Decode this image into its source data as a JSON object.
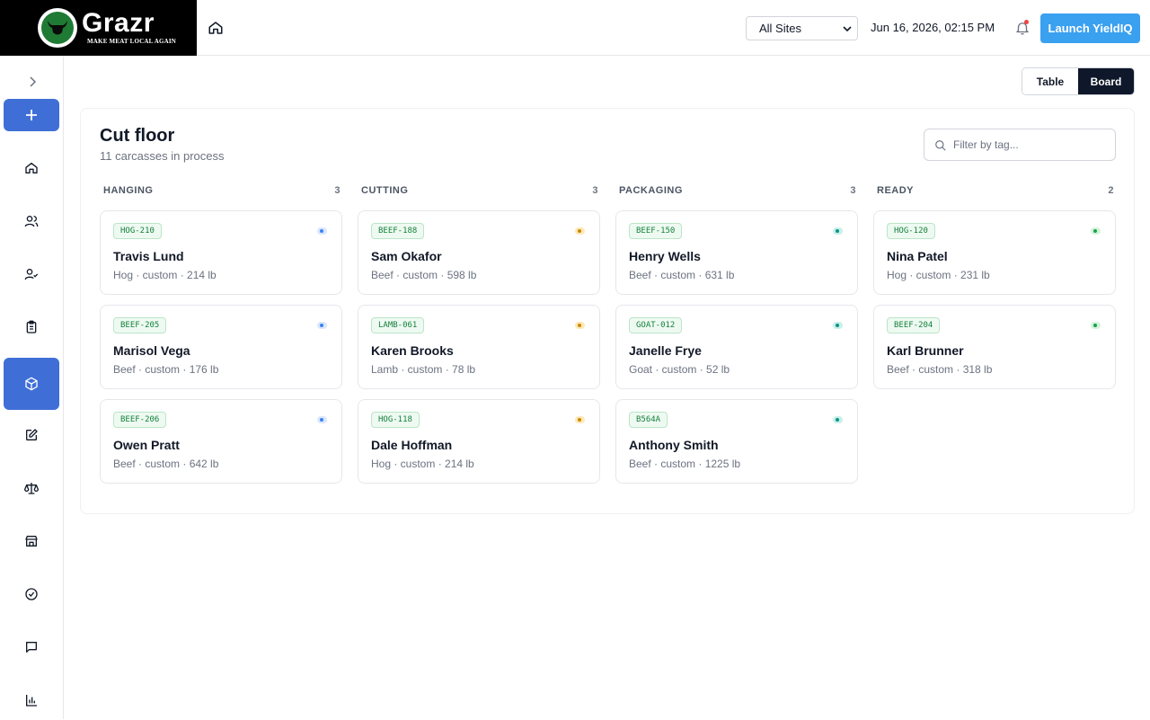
{
  "brand": {
    "name": "Grazr",
    "tagline": "MAKE MEAT LOCAL AGAIN"
  },
  "header": {
    "site_select": "All Sites",
    "datetime": "Jun 16, 2026, 02:15 PM",
    "launch_button": "Launch YieldIQ"
  },
  "view_toggle": {
    "table": "Table",
    "board": "Board",
    "selected": "Board"
  },
  "board": {
    "title": "Cut floor",
    "subtitle": "11 carcasses in process",
    "filter_placeholder": "Filter by tag...",
    "columns": [
      {
        "name": "HANGING",
        "count": "3",
        "status_color": "blue",
        "cards": [
          {
            "tag": "HOG-210",
            "name": "Travis Lund",
            "meta": "Hog · custom · 214 lb"
          },
          {
            "tag": "BEEF-205",
            "name": "Marisol Vega",
            "meta": "Beef · custom · 176 lb"
          },
          {
            "tag": "BEEF-206",
            "name": "Owen Pratt",
            "meta": "Beef · custom · 642 lb"
          }
        ]
      },
      {
        "name": "CUTTING",
        "count": "3",
        "status_color": "amber",
        "cards": [
          {
            "tag": "BEEF-188",
            "name": "Sam Okafor",
            "meta": "Beef · custom · 598 lb"
          },
          {
            "tag": "LAMB-061",
            "name": "Karen Brooks",
            "meta": "Lamb · custom · 78 lb"
          },
          {
            "tag": "HOG-118",
            "name": "Dale Hoffman",
            "meta": "Hog · custom · 214 lb"
          }
        ]
      },
      {
        "name": "PACKAGING",
        "count": "3",
        "status_color": "teal",
        "cards": [
          {
            "tag": "BEEF-150",
            "name": "Henry Wells",
            "meta": "Beef · custom · 631 lb"
          },
          {
            "tag": "GOAT-012",
            "name": "Janelle Frye",
            "meta": "Goat · custom · 52 lb"
          },
          {
            "tag": "B564A",
            "name": "Anthony Smith",
            "meta": "Beef · custom · 1225 lb"
          }
        ]
      },
      {
        "name": "READY",
        "count": "2",
        "status_color": "green",
        "cards": [
          {
            "tag": "HOG-120",
            "name": "Nina Patel",
            "meta": "Hog · custom · 231 lb"
          },
          {
            "tag": "BEEF-204",
            "name": "Karl Brunner",
            "meta": "Beef · custom · 318 lb"
          }
        ]
      }
    ]
  },
  "sidebar": {
    "items": [
      {
        "icon": "home-icon"
      },
      {
        "icon": "users-icon"
      },
      {
        "icon": "user-check-icon"
      },
      {
        "icon": "clipboard-icon"
      },
      {
        "icon": "package-icon",
        "active": true
      },
      {
        "icon": "edit-icon"
      },
      {
        "icon": "scale-icon"
      },
      {
        "icon": "store-icon"
      },
      {
        "icon": "check-circle-icon"
      },
      {
        "icon": "message-icon"
      },
      {
        "icon": "bar-chart-icon"
      }
    ]
  },
  "colors": {
    "accent": "#3f6fd6",
    "launch": "#3aa0f0",
    "board_active": "#0f172a"
  }
}
